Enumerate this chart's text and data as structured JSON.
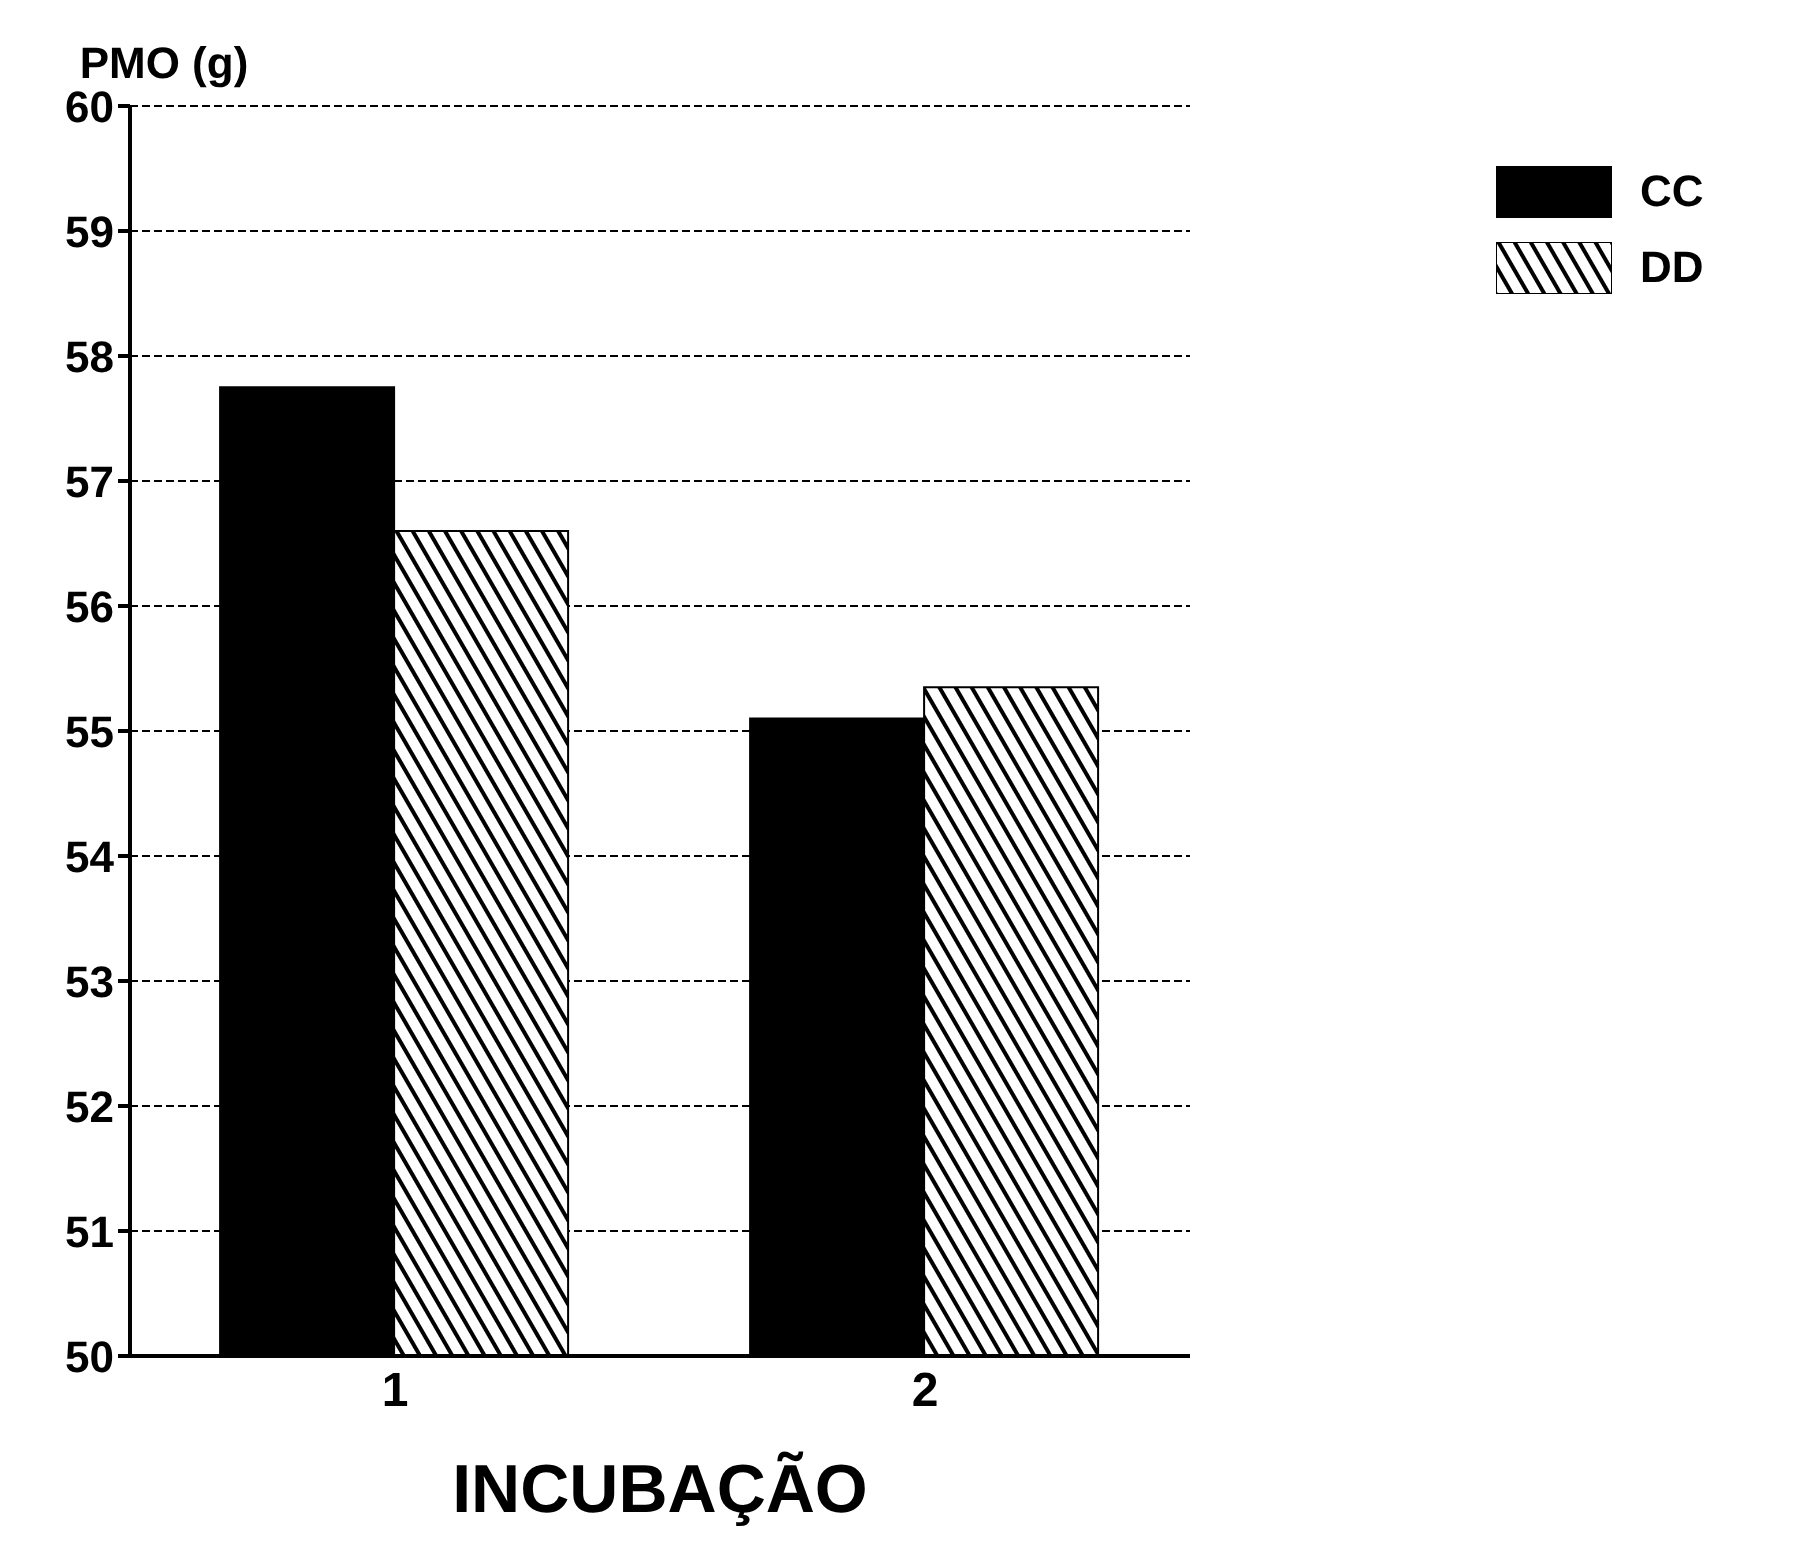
{
  "chart_data": {
    "type": "bar",
    "xlabel": "INCUBAÇÃO",
    "ylabel": "PMO (g)",
    "categories": [
      "1",
      "2"
    ],
    "series": [
      {
        "name": "CC",
        "color": "#000000",
        "values": [
          57.75,
          55.1
        ]
      },
      {
        "name": "DD",
        "color": "#000000",
        "values": [
          56.6,
          55.35
        ]
      }
    ],
    "ylim": [
      50,
      60
    ],
    "yticks": [
      50,
      51,
      52,
      53,
      54,
      55,
      56,
      57,
      58,
      59,
      60
    ],
    "grid": "y",
    "legend": "top right"
  }
}
